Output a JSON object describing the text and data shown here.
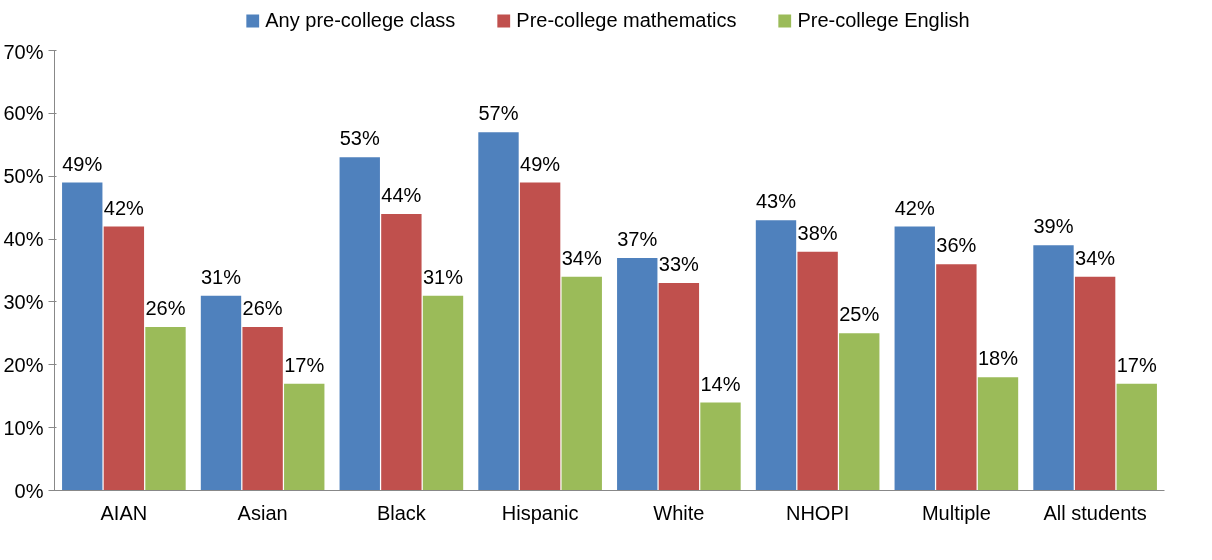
{
  "chart_data": {
    "type": "bar",
    "categories": [
      "AIAN",
      "Asian",
      "Black",
      "Hispanic",
      "White",
      "NHOPI",
      "Multiple",
      "All students"
    ],
    "series": [
      {
        "name": "Any pre-college class",
        "color": "#4f81bd",
        "values": [
          49,
          31,
          53,
          57,
          37,
          43,
          42,
          39
        ]
      },
      {
        "name": "Pre-college mathematics",
        "color": "#c0504d",
        "values": [
          42,
          26,
          44,
          49,
          33,
          38,
          36,
          34
        ]
      },
      {
        "name": "Pre-college English",
        "color": "#9bbb59",
        "values": [
          26,
          17,
          31,
          34,
          14,
          25,
          18,
          17
        ]
      }
    ],
    "ylim": [
      0,
      70
    ],
    "yticks": [
      {
        "value": 0,
        "label": "0%"
      },
      {
        "value": 10,
        "label": "10%"
      },
      {
        "value": 20,
        "label": "20%"
      },
      {
        "value": 30,
        "label": "30%"
      },
      {
        "value": 40,
        "label": "40%"
      },
      {
        "value": 50,
        "label": "50%"
      },
      {
        "value": 60,
        "label": "60%"
      },
      {
        "value": 70,
        "label": "70%"
      }
    ],
    "value_labels": [
      [
        "49%",
        "31%",
        "53%",
        "57%",
        "37%",
        "43%",
        "42%",
        "39%"
      ],
      [
        "42%",
        "26%",
        "44%",
        "49%",
        "33%",
        "38%",
        "36%",
        "34%"
      ],
      [
        "26%",
        "17%",
        "31%",
        "34%",
        "14%",
        "25%",
        "18%",
        "17%"
      ]
    ],
    "grid": false,
    "legend": "top"
  }
}
